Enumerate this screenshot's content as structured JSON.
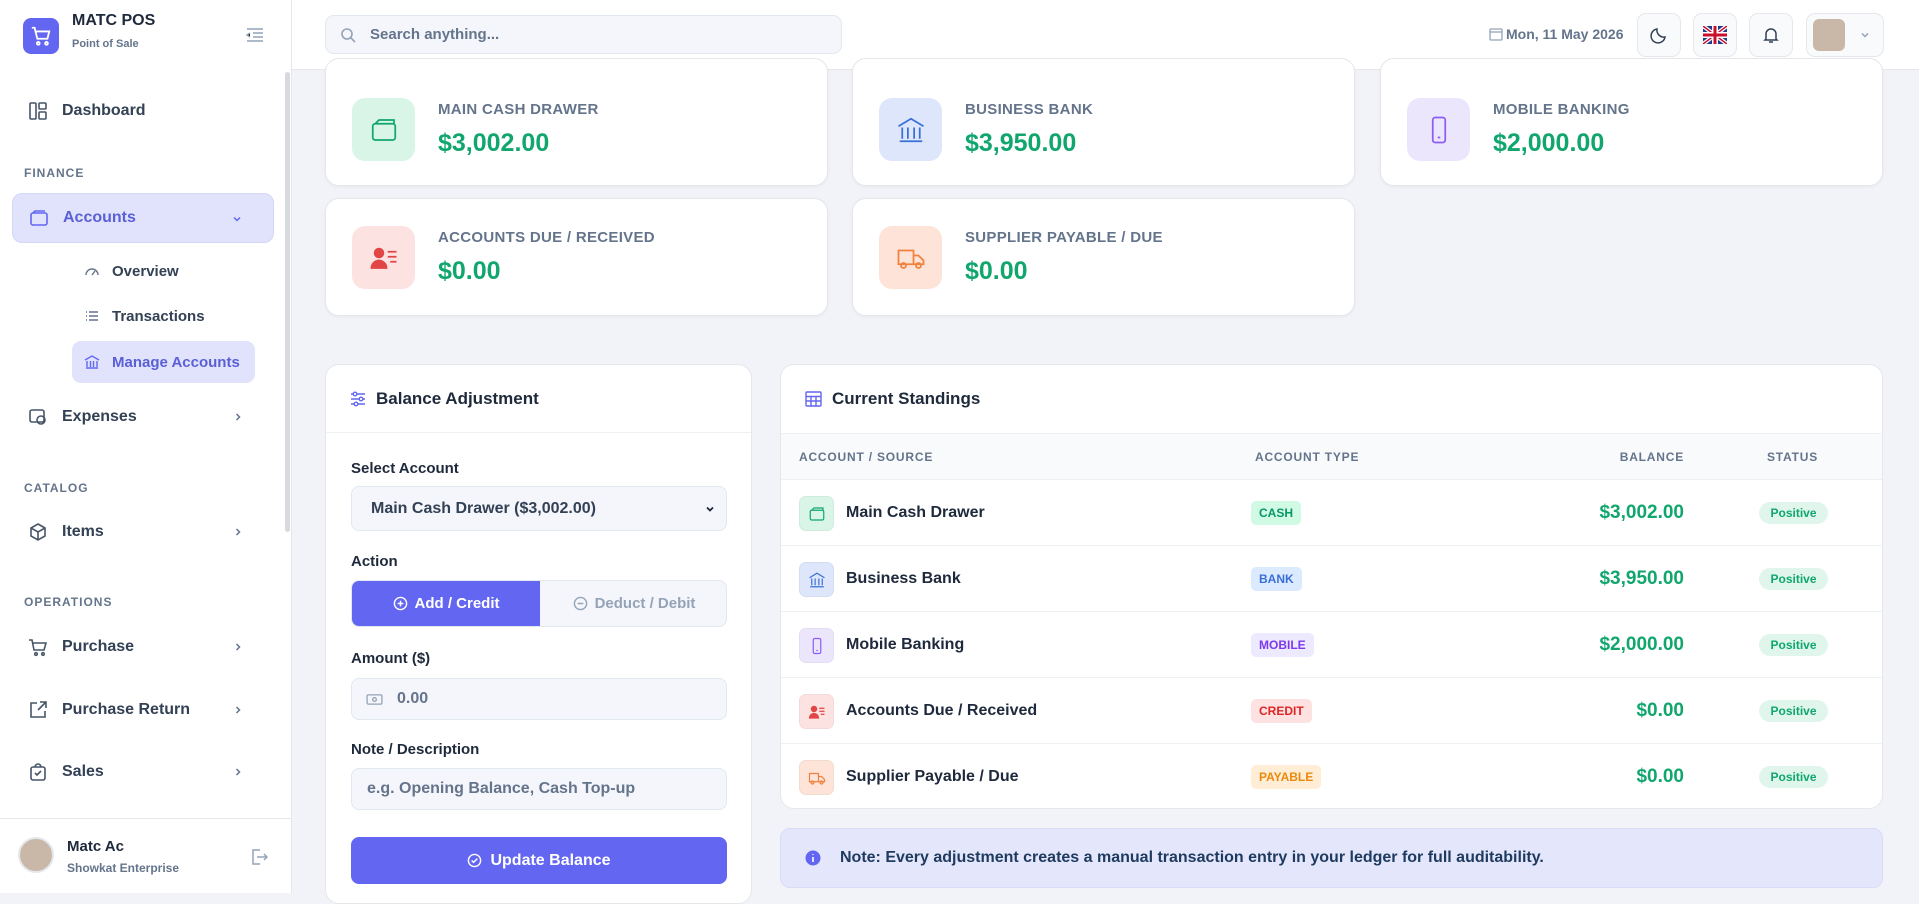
{
  "brand": {
    "name": "MATC POS",
    "tagline": "Point of Sale"
  },
  "search": {
    "placeholder": "Search anything..."
  },
  "header": {
    "date": "Mon, 11 May 2026"
  },
  "sidebar": {
    "dashboard": "Dashboard",
    "sections": [
      {
        "label": "FINANCE",
        "items": [
          {
            "label": "Accounts",
            "children": [
              "Overview",
              "Transactions",
              "Manage Accounts"
            ]
          },
          {
            "label": "Expenses"
          }
        ]
      },
      {
        "label": "CATALOG",
        "items": [
          {
            "label": "Items"
          }
        ]
      },
      {
        "label": "OPERATIONS",
        "items": [
          {
            "label": "Purchase"
          },
          {
            "label": "Purchase Return"
          },
          {
            "label": "Sales"
          }
        ]
      }
    ]
  },
  "user": {
    "name": "Matc Ac",
    "company": "Showkat Enterprise"
  },
  "cards": [
    {
      "label": "MAIN CASH DRAWER",
      "amount": "$3,002.00"
    },
    {
      "label": "BUSINESS BANK",
      "amount": "$3,950.00"
    },
    {
      "label": "MOBILE BANKING",
      "amount": "$2,000.00"
    },
    {
      "label": "ACCOUNTS DUE / RECEIVED",
      "amount": "$0.00"
    },
    {
      "label": "SUPPLIER PAYABLE / DUE",
      "amount": "$0.00"
    }
  ],
  "adjustment": {
    "title": "Balance Adjustment",
    "select_label": "Select Account",
    "selected": "Main Cash Drawer ($3,002.00)",
    "action_label": "Action",
    "credit": "Add / Credit",
    "debit": "Deduct / Debit",
    "amount_label": "Amount ($)",
    "amount_placeholder": "0.00",
    "note_label": "Note / Description",
    "note_placeholder": "e.g. Opening Balance, Cash Top-up",
    "submit": "Update Balance"
  },
  "standings": {
    "title": "Current Standings",
    "columns": [
      "ACCOUNT / SOURCE",
      "ACCOUNT TYPE",
      "BALANCE",
      "STATUS"
    ],
    "rows": [
      [
        "Main Cash Drawer",
        "CASH",
        "$3,002.00",
        "Positive"
      ],
      [
        "Business Bank",
        "BANK",
        "$3,950.00",
        "Positive"
      ],
      [
        "Mobile Banking",
        "MOBILE",
        "$2,000.00",
        "Positive"
      ],
      [
        "Accounts Due / Received",
        "CREDIT",
        "$0.00",
        "Positive"
      ],
      [
        "Supplier Payable / Due",
        "PAYABLE",
        "$0.00",
        "Positive"
      ]
    ]
  },
  "note": "Note: Every adjustment creates a manual transaction entry in your ledger for full auditability."
}
